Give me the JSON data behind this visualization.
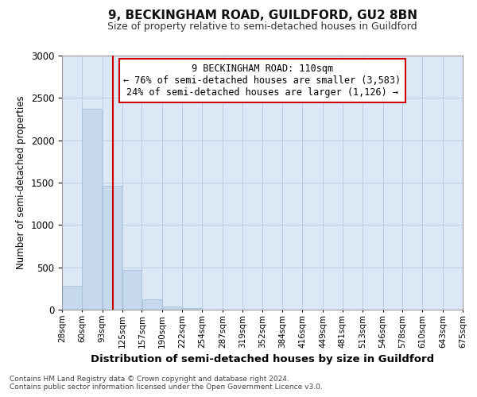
{
  "title1": "9, BECKINGHAM ROAD, GUILDFORD, GU2 8BN",
  "title2": "Size of property relative to semi-detached houses in Guildford",
  "xlabel": "Distribution of semi-detached houses by size in Guildford",
  "ylabel": "Number of semi-detached properties",
  "property_size": 110,
  "annotation_line1": "9 BECKINGHAM ROAD: 110sqm",
  "annotation_line2": "← 76% of semi-detached houses are smaller (3,583)",
  "annotation_line3": "24% of semi-detached houses are larger (1,126) →",
  "footnote1": "Contains HM Land Registry data © Crown copyright and database right 2024.",
  "footnote2": "Contains public sector information licensed under the Open Government Licence v3.0.",
  "bin_edges": [
    28,
    60,
    93,
    125,
    157,
    190,
    222,
    254,
    287,
    319,
    352,
    384,
    416,
    449,
    481,
    513,
    546,
    578,
    610,
    643,
    675
  ],
  "bin_labels": [
    "28sqm",
    "60sqm",
    "93sqm",
    "125sqm",
    "157sqm",
    "190sqm",
    "222sqm",
    "254sqm",
    "287sqm",
    "319sqm",
    "352sqm",
    "384sqm",
    "416sqm",
    "449sqm",
    "481sqm",
    "513sqm",
    "546sqm",
    "578sqm",
    "610sqm",
    "643sqm",
    "675sqm"
  ],
  "values": [
    280,
    2370,
    1460,
    470,
    125,
    40,
    20,
    0,
    0,
    0,
    0,
    0,
    0,
    0,
    0,
    0,
    0,
    0,
    0,
    0
  ],
  "bar_color": "#c5d8ec",
  "bar_edge_color": "#a0bcd8",
  "property_line_color": "#cc0000",
  "annotation_box_color": "#cc0000",
  "ylim": [
    0,
    3000
  ],
  "yticks": [
    0,
    500,
    1000,
    1500,
    2000,
    2500,
    3000
  ],
  "plot_bg_color": "#dce8f5",
  "background_color": "#ffffff",
  "grid_color": "#b8cfe0"
}
